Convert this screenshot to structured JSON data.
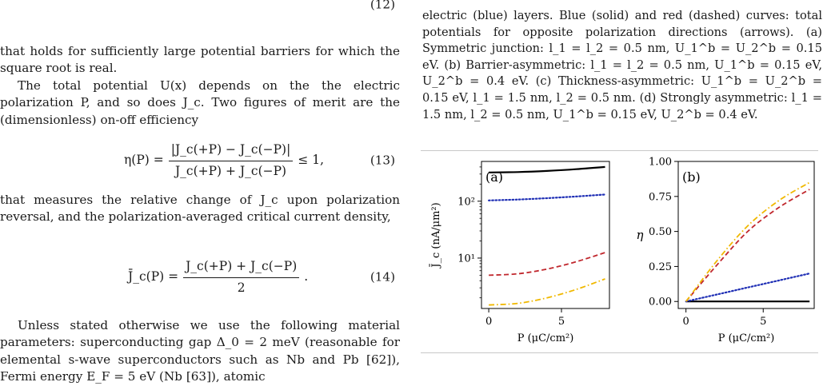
{
  "left": {
    "eq12_number": "(12)",
    "para1": "that holds for sufficiently large potential barriers for which the square root is real.",
    "para2": "The total potential U(x) depends on the the electric polarization P, and so does J_c. Two figures of merit are the (dimensionless) on-off efficiency",
    "eq13": {
      "lhs": "η(P) =",
      "numerator": "|J_c(+P) − J_c(−P)|",
      "denominator": "J_c(+P) + J_c(−P)",
      "rhs": "≤ 1,",
      "number": "(13)"
    },
    "para3": "that measures the relative change of J_c upon polarization reversal, and the polarization-averaged critical current density,",
    "eq14": {
      "lhs": "J̄_c(P) =",
      "numerator": "J_c(+P) + J_c(−P)",
      "denominator": "2",
      "rhs": ".",
      "number": "(14)"
    },
    "para4": "Unless stated otherwise we use the following material parameters: superconducting gap Δ_0 = 2 meV (reasonable for elemental s-wave superconductors such as Nb and Pb [62]), Fermi energy E_F = 5 eV (Nb [63]), atomic"
  },
  "right": {
    "caption_top": "electric (blue) layers. Blue (solid) and red (dashed) curves: total potentials for opposite polarization directions (arrows). (a) Symmetric junction: l_1 = l_2 = 0.5 nm, U_1^b = U_2^b = 0.15 eV. (b) Barrier-asymmetric: l_1 = l_2 = 0.5 nm, U_1^b = 0.15 eV, U_2^b = 0.4 eV. (c) Thickness-asymmetric: U_1^b = U_2^b = 0.15 eV, l_1 = 1.5 nm, l_2 = 0.5 nm. (d) Strongly asymmetric: l_1 = 1.5 nm, l_2 = 0.5 nm, U_1^b = 0.15 eV, U_2^b = 0.4 eV."
  },
  "chart_data": [
    {
      "type": "line",
      "panel_label": "(a)",
      "ylabel": "J̄_c (nA/μm²)",
      "xlabel": "P (μC/cm²)",
      "y_scale": "log",
      "xlim": [
        -0.5,
        8.3
      ],
      "ylim": [
        1.3,
        500
      ],
      "xticks": [
        0,
        5
      ],
      "xtick_labels": [
        "0",
        "5"
      ],
      "yticks": [
        10,
        100
      ],
      "ytick_labels": [
        "10¹",
        "10²"
      ],
      "x": [
        0,
        2,
        4,
        6,
        8
      ],
      "series": [
        {
          "style": "solid",
          "color": "#000000",
          "values": [
            320,
            325,
            340,
            365,
            400
          ]
        },
        {
          "style": "dotted",
          "color": "#1f2fb5",
          "values": [
            103,
            107,
            113,
            121,
            131
          ]
        },
        {
          "style": "dashed",
          "color": "#c0272d",
          "values": [
            5.0,
            5.3,
            6.4,
            8.6,
            12.5
          ]
        },
        {
          "style": "dashdot",
          "color": "#f0b800",
          "values": [
            1.5,
            1.6,
            2.0,
            2.8,
            4.3
          ]
        }
      ]
    },
    {
      "type": "line",
      "panel_label": "(b)",
      "ylabel": "η",
      "xlabel": "P (μC/cm²)",
      "xlim": [
        -0.5,
        8.3
      ],
      "ylim": [
        -0.05,
        1.0
      ],
      "xticks": [
        0,
        5
      ],
      "xtick_labels": [
        "0",
        "5"
      ],
      "yticks": [
        0,
        0.25,
        0.5,
        0.75,
        1.0
      ],
      "ytick_labels": [
        "0.00",
        "0.25",
        "0.50",
        "0.75",
        "1.00"
      ],
      "x": [
        0,
        2,
        4,
        6,
        8
      ],
      "series": [
        {
          "style": "solid",
          "color": "#000000",
          "values": [
            0.0,
            0.0,
            0.0,
            0.0,
            0.0
          ]
        },
        {
          "style": "dotted",
          "color": "#1f2fb5",
          "values": [
            0.0,
            0.05,
            0.1,
            0.15,
            0.2
          ]
        },
        {
          "style": "dashed",
          "color": "#c0272d",
          "values": [
            0.0,
            0.26,
            0.5,
            0.67,
            0.8
          ]
        },
        {
          "style": "dashdot",
          "color": "#f0b800",
          "values": [
            0.0,
            0.29,
            0.54,
            0.72,
            0.85
          ]
        }
      ]
    }
  ]
}
